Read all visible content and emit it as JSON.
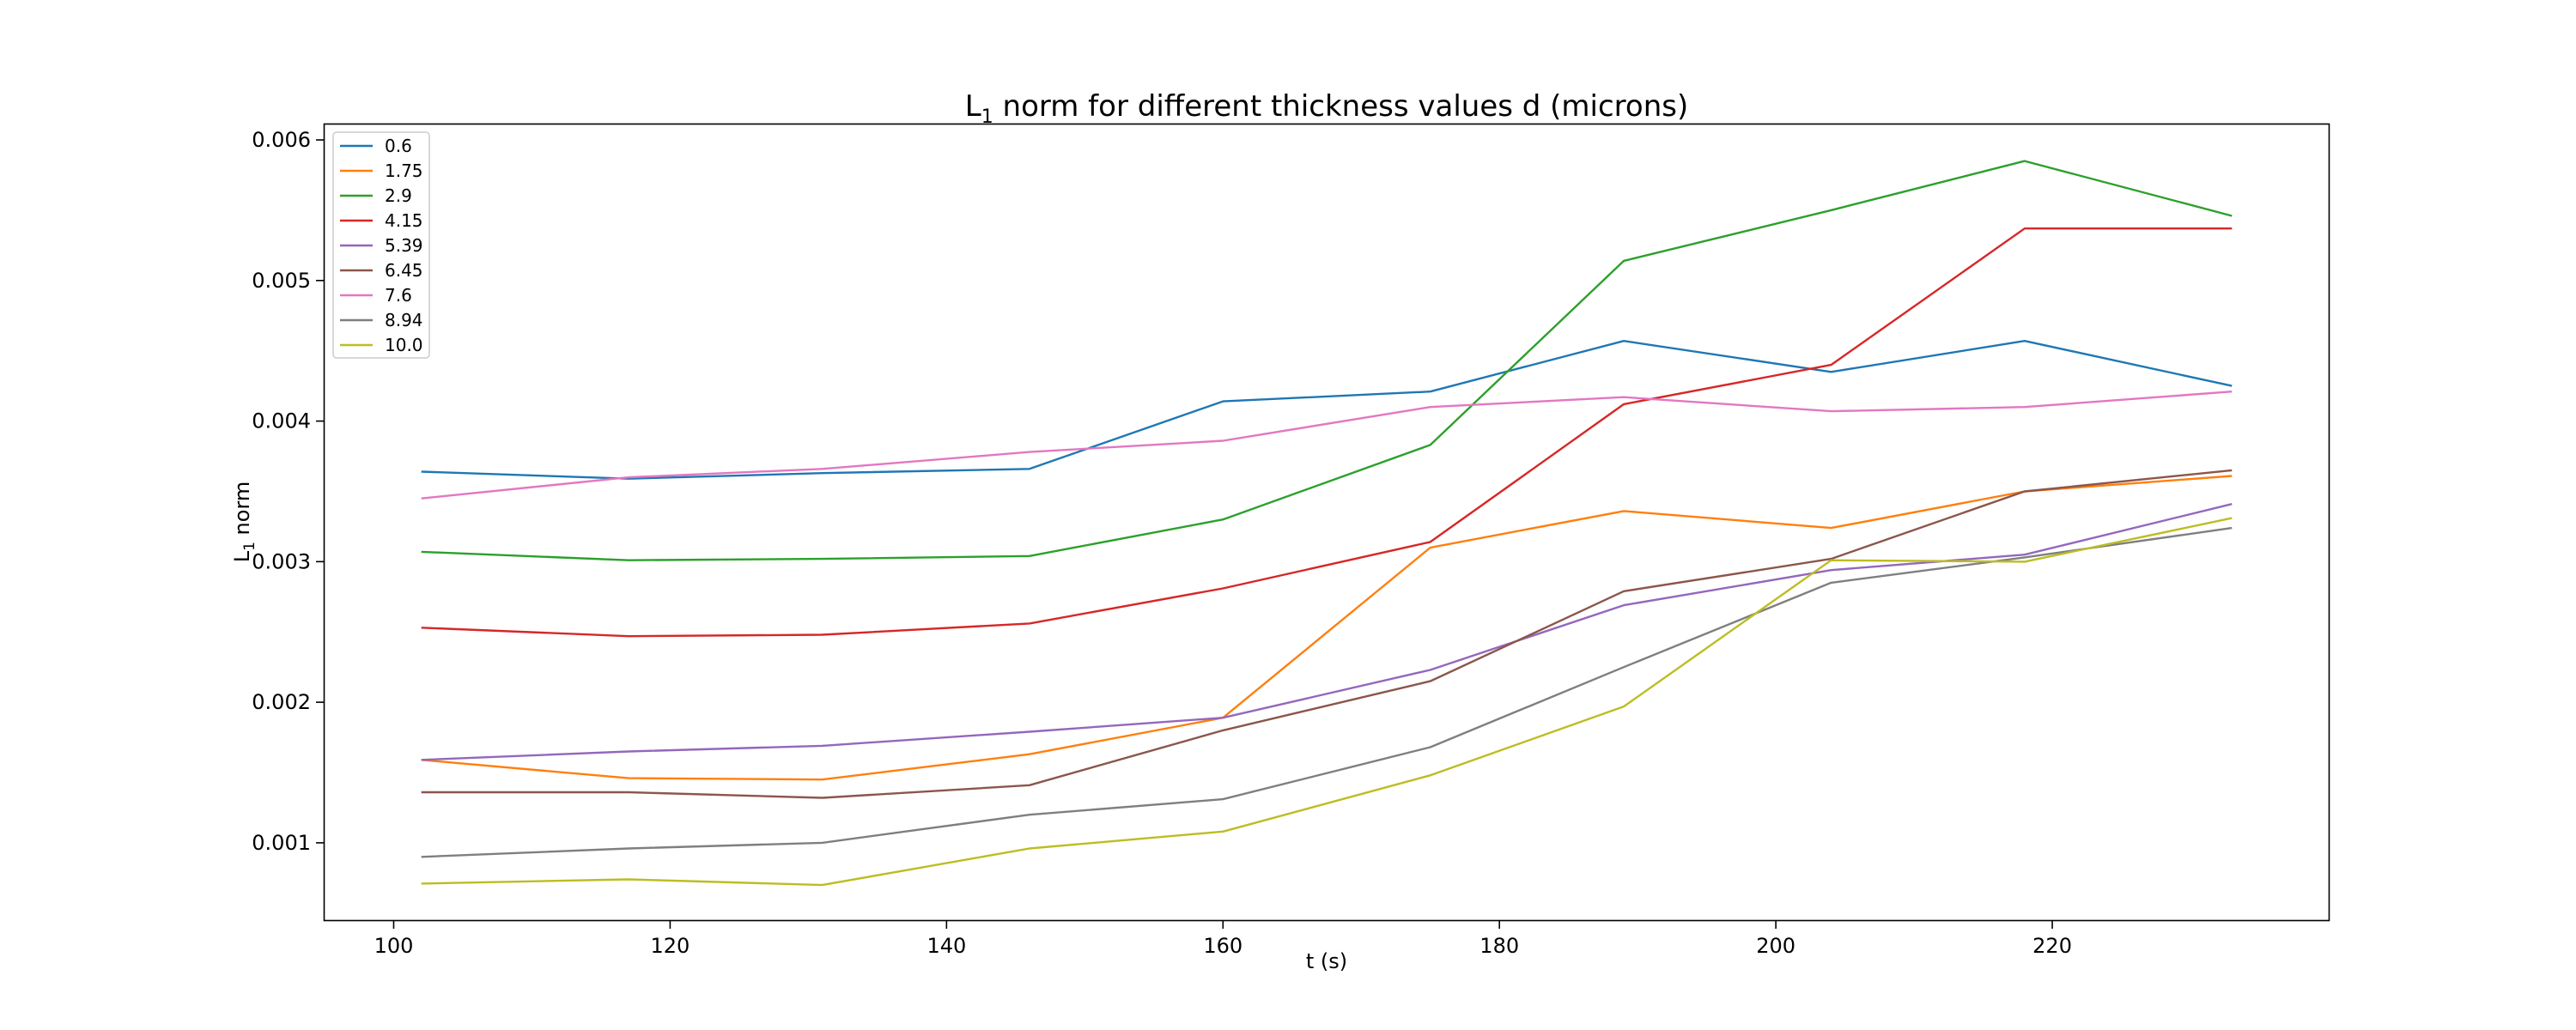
{
  "chart_data": {
    "type": "line",
    "title_main": "L",
    "title_sub": "1",
    "title_rest": " norm for different thickness values d (microns)",
    "xlabel": "t (s)",
    "ylabel_main": "L",
    "ylabel_sub": "1",
    "ylabel_rest": " norm",
    "xlim": [
      95,
      240
    ],
    "ylim": [
      0.00045,
      0.00611
    ],
    "xticks": [
      100,
      120,
      140,
      160,
      180,
      200,
      220
    ],
    "xtick_labels": [
      "100",
      "120",
      "140",
      "160",
      "180",
      "200",
      "220"
    ],
    "yticks": [
      0.001,
      0.002,
      0.003,
      0.004,
      0.005,
      0.006
    ],
    "ytick_labels": [
      "0.001",
      "0.002",
      "0.003",
      "0.004",
      "0.005",
      "0.006"
    ],
    "grid": false,
    "legend_position": "upper-left",
    "x": [
      102,
      117,
      131,
      146,
      160,
      175,
      189,
      204,
      218,
      233
    ],
    "series": [
      {
        "name": "0.6",
        "color": "#1f77b4",
        "values": [
          0.00364,
          0.00359,
          0.00363,
          0.00366,
          0.00414,
          0.00421,
          0.00457,
          0.00435,
          0.00457,
          0.00425
        ]
      },
      {
        "name": "1.75",
        "color": "#ff7f0e",
        "values": [
          0.00159,
          0.00146,
          0.00145,
          0.00163,
          0.00189,
          0.0031,
          0.00336,
          0.00324,
          0.0035,
          0.00361
        ]
      },
      {
        "name": "2.9",
        "color": "#2ca02c",
        "values": [
          0.00307,
          0.00301,
          0.00302,
          0.00304,
          0.0033,
          0.00383,
          0.00514,
          0.0055,
          0.00585,
          0.00546
        ]
      },
      {
        "name": "4.15",
        "color": "#d62728",
        "values": [
          0.00253,
          0.00247,
          0.00248,
          0.00256,
          0.00281,
          0.00314,
          0.00412,
          0.0044,
          0.00537,
          0.00537
        ]
      },
      {
        "name": "5.39",
        "color": "#9467bd",
        "values": [
          0.00159,
          0.00165,
          0.00169,
          0.00179,
          0.00189,
          0.00223,
          0.00269,
          0.00294,
          0.00305,
          0.00341
        ]
      },
      {
        "name": "6.45",
        "color": "#8c564b",
        "values": [
          0.00136,
          0.00136,
          0.00132,
          0.00141,
          0.0018,
          0.00215,
          0.00279,
          0.00302,
          0.0035,
          0.00365
        ]
      },
      {
        "name": "7.6",
        "color": "#e377c2",
        "values": [
          0.00345,
          0.0036,
          0.00366,
          0.00378,
          0.00386,
          0.0041,
          0.00417,
          0.00407,
          0.0041,
          0.00421
        ]
      },
      {
        "name": "8.94",
        "color": "#7f7f7f",
        "values": [
          0.0009,
          0.00096,
          0.001,
          0.0012,
          0.00131,
          0.00168,
          0.00225,
          0.00285,
          0.00303,
          0.00324
        ]
      },
      {
        "name": "10.0",
        "color": "#bcbd22",
        "values": [
          0.00071,
          0.00074,
          0.0007,
          0.00096,
          0.00108,
          0.00148,
          0.00197,
          0.00301,
          0.003,
          0.00331
        ]
      }
    ]
  }
}
